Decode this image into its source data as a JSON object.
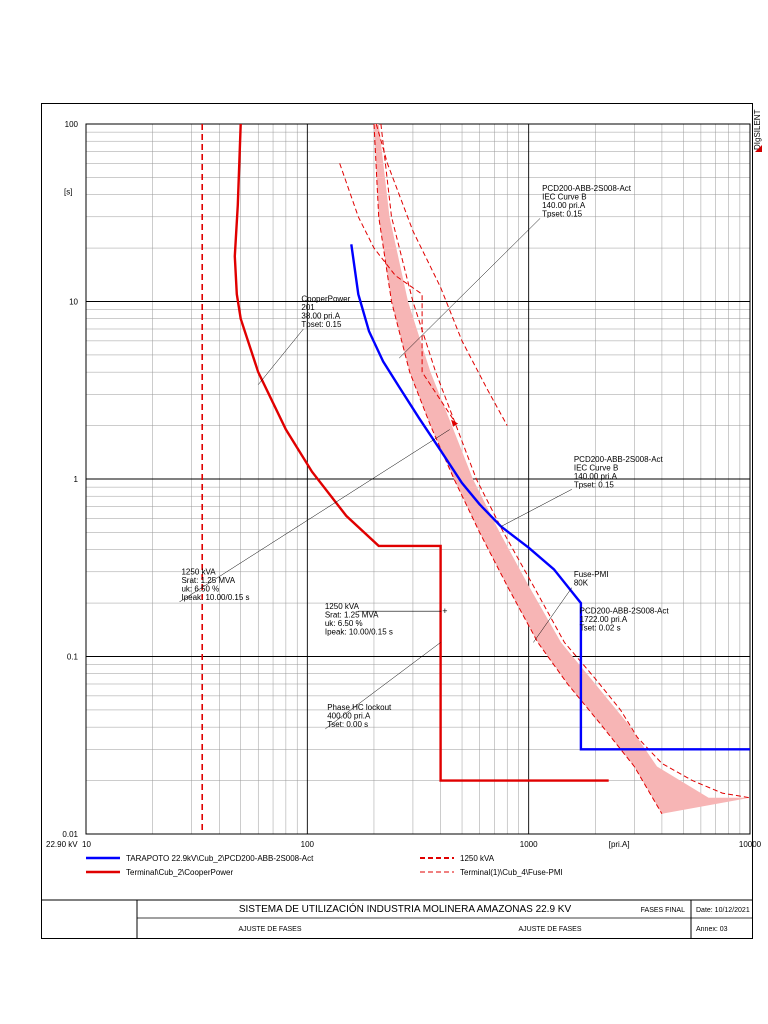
{
  "brand": "DIgSILENT",
  "chart_data": {
    "type": "line",
    "x_scale": "log",
    "y_scale": "log",
    "xlim": [
      10,
      10000
    ],
    "ylim": [
      0.01,
      100
    ],
    "grid": true,
    "x_ticks": [
      "10",
      "100",
      "1000",
      "10000"
    ],
    "y_ticks": [
      "100",
      "10",
      "1",
      "0.1",
      "0.01"
    ],
    "voltage_label": "22.90 kV",
    "xlabel": "[pri.A]",
    "ylabel": "[s]",
    "curves": {
      "relay_blue": {
        "color": "#0000ff",
        "points": [
          [
            158,
            21
          ],
          [
            170,
            11
          ],
          [
            190,
            6.8
          ],
          [
            220,
            4.6
          ],
          [
            260,
            3.3
          ],
          [
            320,
            2.2
          ],
          [
            400,
            1.45
          ],
          [
            500,
            0.95
          ],
          [
            600,
            0.72
          ],
          [
            750,
            0.54
          ],
          [
            1000,
            0.41
          ],
          [
            1300,
            0.31
          ],
          [
            1722,
            0.2
          ],
          [
            1722,
            0.03
          ],
          [
            10000,
            0.03
          ]
        ]
      },
      "recloser_red": {
        "color": "#e00000",
        "points": [
          [
            50,
            100
          ],
          [
            48.5,
            35
          ],
          [
            47,
            18
          ],
          [
            48,
            11
          ],
          [
            50,
            8
          ],
          [
            60,
            4
          ],
          [
            80,
            1.9
          ],
          [
            105,
            1.1
          ],
          [
            150,
            0.62
          ],
          [
            210,
            0.42
          ],
          [
            400,
            0.42
          ],
          [
            400,
            0.02
          ],
          [
            1000,
            0.02
          ],
          [
            2300,
            0.02
          ]
        ]
      },
      "transformer_vertical": {
        "color": "#e00000",
        "x": 33.5
      },
      "fuse_min": [
        [
          200,
          100
        ],
        [
          210,
          30
        ],
        [
          240,
          10
        ],
        [
          290,
          4
        ],
        [
          360,
          2
        ],
        [
          460,
          1
        ],
        [
          600,
          0.5
        ],
        [
          800,
          0.25
        ],
        [
          1100,
          0.12
        ],
        [
          1500,
          0.07
        ],
        [
          2100,
          0.042
        ],
        [
          3000,
          0.024
        ],
        [
          4000,
          0.013
        ]
      ],
      "fuse_max": [
        [
          210,
          100
        ],
        [
          235,
          30
        ],
        [
          285,
          10
        ],
        [
          360,
          4
        ],
        [
          450,
          2
        ],
        [
          560,
          1
        ],
        [
          740,
          0.5
        ],
        [
          1000,
          0.25
        ],
        [
          1400,
          0.12
        ],
        [
          2000,
          0.07
        ],
        [
          2800,
          0.042
        ],
        [
          3800,
          0.024
        ],
        [
          6500,
          0.016
        ],
        [
          10000,
          0.016
        ]
      ],
      "fuse_outline_left": [
        [
          200,
          100
        ],
        [
          210,
          30
        ],
        [
          240,
          10
        ],
        [
          290,
          4
        ],
        [
          360,
          2
        ],
        [
          460,
          1
        ],
        [
          600,
          0.5
        ],
        [
          800,
          0.25
        ],
        [
          1100,
          0.12
        ],
        [
          1500,
          0.07
        ],
        [
          2100,
          0.042
        ],
        [
          3000,
          0.024
        ],
        [
          4000,
          0.013
        ]
      ],
      "fuse_outline_right": [
        [
          215,
          100
        ],
        [
          240,
          30
        ],
        [
          300,
          10
        ],
        [
          380,
          4
        ],
        [
          470,
          2
        ],
        [
          580,
          1
        ],
        [
          770,
          0.5
        ],
        [
          1050,
          0.25
        ],
        [
          1450,
          0.12
        ],
        [
          2000,
          0.075
        ],
        [
          2600,
          0.05
        ],
        [
          3100,
          0.035
        ],
        [
          4000,
          0.025
        ],
        [
          5500,
          0.02
        ],
        [
          7500,
          0.017
        ],
        [
          10000,
          0.016
        ]
      ],
      "transformer_damage_1": [
        [
          205,
          100
        ],
        [
          230,
          60
        ],
        [
          300,
          25
        ],
        [
          400,
          12
        ],
        [
          500,
          6
        ],
        [
          650,
          3.2
        ],
        [
          800,
          2
        ]
      ],
      "transformer_damage_2": [
        [
          140,
          60
        ],
        [
          170,
          30
        ],
        [
          200,
          20
        ],
        [
          250,
          14
        ],
        [
          330,
          11
        ],
        [
          330,
          4
        ],
        [
          470,
          2.05
        ]
      ],
      "inrush_point": {
        "from": [
          170,
          0.18
        ],
        "to": [
          420,
          0.18
        ]
      }
    },
    "annotations": [
      {
        "text": [
          "PCD200-ABB-2S008-Act",
          "IEC Curve B",
          "140.00 pri.A",
          "Tpset: 0.15"
        ],
        "at": [
          1150,
          42
        ],
        "leader_to": [
          260,
          4.8
        ]
      },
      {
        "text": [
          "CooperPower",
          "201",
          "38.00 pri.A",
          "Tpset: 0.15"
        ],
        "at": [
          94,
          10
        ],
        "leader_to": [
          60,
          3.4
        ]
      },
      {
        "text": [
          "PCD200-ABB-2S008-Act",
          "IEC Curve B",
          "140.00 pri.A",
          "Tpset: 0.15"
        ],
        "at": [
          1600,
          1.25
        ],
        "leader_to": [
          750,
          0.54
        ]
      },
      {
        "text": [
          "Fuse-PMI",
          "80K"
        ],
        "at": [
          1600,
          0.28
        ],
        "leader_to": [
          1050,
          0.12
        ]
      },
      {
        "text": [
          "1250  kVA",
          "Srat: 1.25 MVA",
          "uk: 6.50 %",
          "Ipeak: 10.00/0.15 s"
        ],
        "at": [
          27,
          0.29
        ],
        "leader_to": [
          440,
          1.9
        ]
      },
      {
        "text": [
          "PCD200-ABB-2S008-Act",
          "1722.00 pri.A",
          "Tset: 0.02 s"
        ],
        "at": [
          1700,
          0.175
        ],
        "leader_to": [
          null,
          null
        ]
      },
      {
        "text": [
          "1250  kVA",
          "Srat: 1.25 MVA",
          "uk: 6.50 %",
          "Ipeak: 10.00/0.15 s"
        ],
        "at": [
          120,
          0.185
        ],
        "leader_to": [
          null,
          null
        ]
      },
      {
        "text": [
          "Phase HC lockout",
          "400.00 pri.A",
          "Tset: 0.00 s"
        ],
        "at": [
          123,
          0.05
        ],
        "leader_to": [
          400,
          0.12
        ]
      }
    ],
    "legend": [
      {
        "label": "TARAPOTO 22.9kV\\Cub_2\\PCD200-ABB-2S008-Act",
        "color": "#0000ff",
        "style": "solid"
      },
      {
        "label": "1250  kVA",
        "color": "#e00000",
        "style": "dashed"
      },
      {
        "label": "Terminal\\Cub_2\\CooperPower",
        "color": "#e00000",
        "style": "solid"
      },
      {
        "label": "Terminal(1)\\Cub_4\\Fuse-PMI",
        "color": "#e00000",
        "style": "thin-dashed"
      }
    ]
  },
  "title_block": {
    "title": "SISTEMA DE UTILIZACIÓN INDUSTRIA MOLINERA AMAZONAS 22.9 KV",
    "subtitle_left": "AJUSTE DE FASES",
    "subtitle_right": "AJUSTE DE FASES",
    "case": "FASES FINAL",
    "date": "Date: 10/12/2021",
    "annex": "Annex: 03"
  }
}
